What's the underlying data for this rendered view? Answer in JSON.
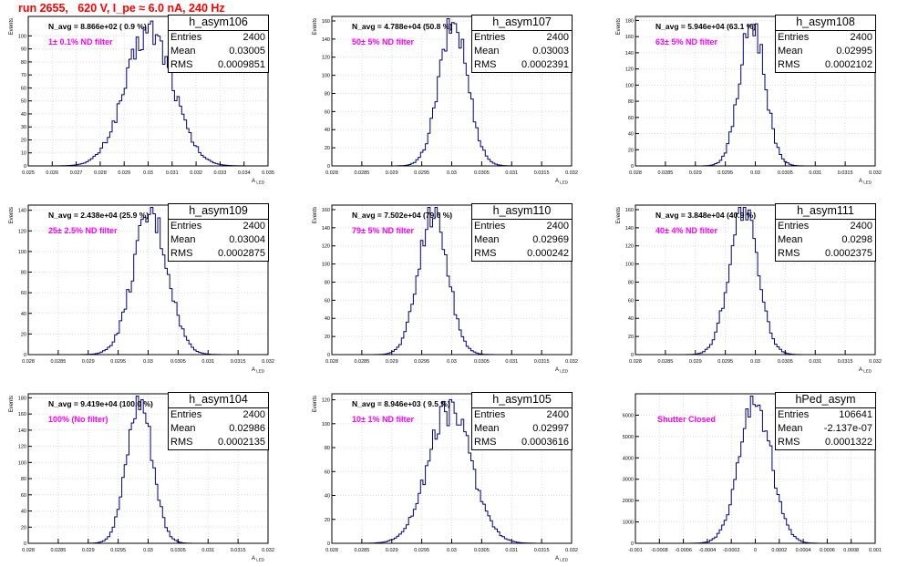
{
  "header": {
    "title": "run 2655,   620 V, I_pe ≈ 6.0 nA, 240 Hz"
  },
  "colors": {
    "title": "#ff0000",
    "label": "#ff00ff",
    "line": "#00007f",
    "grid": "#dcdcdc"
  },
  "stat_labels": {
    "entries": "Entries",
    "mean": "Mean",
    "rms": "RMS"
  },
  "chart_data": [
    {
      "type": "bar",
      "title": "h_asym106",
      "header": "N_avg = 8.866e+02 ( 0.9 %)",
      "label": "1± 0.1% ND filter",
      "xlabel": "A_LED",
      "ylabel": "Events",
      "xlim": [
        0.025,
        0.035
      ],
      "ylim": [
        0,
        115
      ],
      "xticks": [
        "0.025",
        "0.026",
        "0.027",
        "0.028",
        "0.029",
        "0.03",
        "0.031",
        "0.032",
        "0.033",
        "0.034",
        "0.035"
      ],
      "yticks": [
        "0",
        "10",
        "20",
        "30",
        "40",
        "50",
        "60",
        "70",
        "80",
        "90",
        "100"
      ],
      "stats": {
        "entries": "2400",
        "mean": "0.03005",
        "rms": "0.0009851"
      },
      "mean": 0.03005,
      "rms": 0.0009851,
      "peak": 104,
      "entries": 2400,
      "nbins": 100,
      "grid": true
    },
    {
      "type": "bar",
      "title": "h_asym107",
      "header": "N_avg = 4.788e+04 (50.8 %)",
      "label": "50± 5% ND filter",
      "xlabel": "A_LED",
      "ylabel": "Events",
      "xlim": [
        0.028,
        0.032
      ],
      "ylim": [
        0,
        165
      ],
      "xticks": [
        "0.028",
        "0.0285",
        "0.029",
        "0.0295",
        "0.03",
        "0.0305",
        "0.031",
        "0.0315",
        "0.032"
      ],
      "yticks": [
        "0",
        "20",
        "40",
        "60",
        "80",
        "100",
        "120",
        "140",
        "160"
      ],
      "stats": {
        "entries": "2400",
        "mean": "0.03003",
        "rms": "0.0002391"
      },
      "mean": 0.03003,
      "rms": 0.0002391,
      "peak": 158,
      "entries": 2400,
      "nbins": 100,
      "grid": true
    },
    {
      "type": "bar",
      "title": "h_asym108",
      "header": "N_avg = 5.946e+04 (63.1 %)",
      "label": "63± 5% ND filter",
      "xlabel": "A_LED",
      "ylabel": "Events",
      "xlim": [
        0.028,
        0.032
      ],
      "ylim": [
        0,
        185
      ],
      "xticks": [
        "0.028",
        "0.0285",
        "0.029",
        "0.0295",
        "0.03",
        "0.0305",
        "0.031",
        "0.0315",
        "0.032"
      ],
      "yticks": [
        "0",
        "20",
        "40",
        "60",
        "80",
        "100",
        "120",
        "140",
        "160",
        "180"
      ],
      "stats": {
        "entries": "2400",
        "mean": "0.02995",
        "rms": "0.0002102"
      },
      "mean": 0.02995,
      "rms": 0.0002102,
      "peak": 178,
      "entries": 2400,
      "nbins": 100,
      "grid": true
    },
    {
      "type": "bar",
      "title": "h_asym109",
      "header": "N_avg = 2.438e+04 (25.9 %)",
      "label": "25± 2.5% ND filter",
      "xlabel": "A_LED",
      "ylabel": "Events",
      "xlim": [
        0.028,
        0.032
      ],
      "ylim": [
        0,
        145
      ],
      "xticks": [
        "0.028",
        "0.0285",
        "0.029",
        "0.0295",
        "0.03",
        "0.0305",
        "0.031",
        "0.0315",
        "0.032"
      ],
      "yticks": [
        "0",
        "20",
        "40",
        "60",
        "80",
        "100",
        "120",
        "140"
      ],
      "stats": {
        "entries": "2400",
        "mean": "0.03004",
        "rms": "0.0002875"
      },
      "mean": 0.03004,
      "rms": 0.0002875,
      "peak": 136,
      "entries": 2400,
      "nbins": 100,
      "grid": true
    },
    {
      "type": "bar",
      "title": "h_asym110",
      "header": "N_avg = 7.502e+04 (79.6 %)",
      "label": "79± 5% ND filter",
      "xlabel": "A_LED",
      "ylabel": "Events",
      "xlim": [
        0.028,
        0.032
      ],
      "ylim": [
        0,
        165
      ],
      "xticks": [
        "0.028",
        "0.0285",
        "0.029",
        "0.0295",
        "0.03",
        "0.0305",
        "0.031",
        "0.0315",
        "0.032"
      ],
      "yticks": [
        "0",
        "20",
        "40",
        "60",
        "80",
        "100",
        "120",
        "140",
        "160"
      ],
      "stats": {
        "entries": "2400",
        "mean": "0.02969",
        "rms": "0.000242"
      },
      "mean": 0.02969,
      "rms": 0.000242,
      "peak": 160,
      "entries": 2400,
      "nbins": 100,
      "grid": true
    },
    {
      "type": "bar",
      "title": "h_asym111",
      "header": "N_avg = 3.848e+04 (40.9 %)",
      "label": "40± 4% ND filter",
      "xlabel": "A_LED",
      "ylabel": "Events",
      "xlim": [
        0.028,
        0.032
      ],
      "ylim": [
        0,
        165
      ],
      "xticks": [
        "0.028",
        "0.0285",
        "0.029",
        "0.0295",
        "0.03",
        "0.0305",
        "0.031",
        "0.0315",
        "0.032"
      ],
      "yticks": [
        "0",
        "20",
        "40",
        "60",
        "80",
        "100",
        "120",
        "140",
        "160"
      ],
      "stats": {
        "entries": "2400",
        "mean": "0.0298",
        "rms": "0.0002375"
      },
      "mean": 0.0298,
      "rms": 0.0002375,
      "peak": 160,
      "entries": 2400,
      "nbins": 100,
      "grid": true
    },
    {
      "type": "bar",
      "title": "h_asym104",
      "header": "N_avg = 9.419e+04 (100.0 %)",
      "label": "100% (No filter)",
      "xlabel": "A_LED",
      "ylabel": "Events",
      "xlim": [
        0.028,
        0.032
      ],
      "ylim": [
        0,
        185
      ],
      "xticks": [
        "0.028",
        "0.0285",
        "0.029",
        "0.0295",
        "0.03",
        "0.0305",
        "0.031",
        "0.0315",
        "0.032"
      ],
      "yticks": [
        "0",
        "20",
        "40",
        "60",
        "80",
        "100",
        "120",
        "140",
        "160",
        "180"
      ],
      "stats": {
        "entries": "2400",
        "mean": "0.02986",
        "rms": "0.0002135"
      },
      "mean": 0.02986,
      "rms": 0.0002135,
      "peak": 178,
      "entries": 2400,
      "nbins": 100,
      "grid": true
    },
    {
      "type": "bar",
      "title": "h_asym105",
      "header": "N_avg = 8.946e+03 ( 9.5 %)",
      "label": "10± 1% ND filter",
      "xlabel": "A_LED",
      "ylabel": "Events",
      "xlim": [
        0.028,
        0.032
      ],
      "ylim": [
        0,
        125
      ],
      "xticks": [
        "0.028",
        "0.0285",
        "0.029",
        "0.0295",
        "0.03",
        "0.0305",
        "0.031",
        "0.0315",
        "0.032"
      ],
      "yticks": [
        "0",
        "20",
        "40",
        "60",
        "80",
        "100",
        "120"
      ],
      "stats": {
        "entries": "2400",
        "mean": "0.02997",
        "rms": "0.0003616"
      },
      "mean": 0.02997,
      "rms": 0.0003616,
      "peak": 112,
      "entries": 2400,
      "nbins": 100,
      "grid": true
    },
    {
      "type": "bar",
      "title": "hPed_asym",
      "header": "",
      "label": "Shutter Closed",
      "xlabel": "",
      "ylabel": "",
      "xlim": [
        -0.001,
        0.001
      ],
      "ylim": [
        0,
        7000
      ],
      "xticks": [
        "-0.001",
        "-0.0008",
        "-0.0006",
        "-0.0004",
        "-0.0002",
        "0",
        "0.0002",
        "0.0004",
        "0.0006",
        "0.0008",
        "0.001"
      ],
      "yticks": [
        "0",
        "1000",
        "2000",
        "3000",
        "4000",
        "5000",
        "6000"
      ],
      "stats": {
        "entries": "106641",
        "mean": "-2.137e-07",
        "rms": "0.0001322"
      },
      "mean": -2.137e-07,
      "rms": 0.0001322,
      "peak": 6700,
      "entries": 106641,
      "nbins": 100,
      "grid": true
    }
  ]
}
